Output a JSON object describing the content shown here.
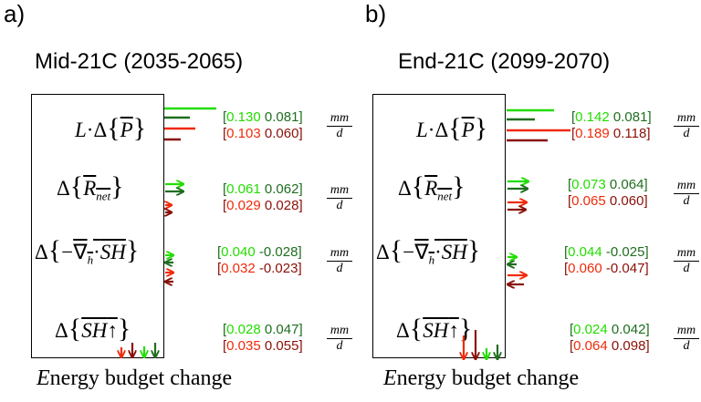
{
  "panels": [
    {
      "letter": "a)",
      "title": "Mid-21C (2035-2065)",
      "footer_E": "E",
      "footer_rest": "nergy budget change",
      "unit_num": "mm",
      "unit_den": "d",
      "terms": [
        {
          "top": [
            "0.130",
            "0.081"
          ],
          "bottom": [
            "0.103",
            "0.060"
          ]
        },
        {
          "top": [
            "0.061",
            "0.062"
          ],
          "bottom": [
            "0.029",
            "0.028"
          ]
        },
        {
          "top": [
            "0.040",
            "-0.028"
          ],
          "bottom": [
            "0.032",
            "-0.023"
          ]
        },
        {
          "top": [
            "0.028",
            "0.047"
          ],
          "bottom": [
            "0.035",
            "0.055"
          ]
        }
      ]
    },
    {
      "letter": "b)",
      "title": "End-21C (2099-2070)",
      "footer_E": "E",
      "footer_rest": "nergy budget change",
      "unit_num": "mm",
      "unit_den": "d",
      "terms": [
        {
          "top": [
            "0.142",
            "0.081"
          ],
          "bottom": [
            "0.189",
            "0.118"
          ]
        },
        {
          "top": [
            "0.073",
            "0.064"
          ],
          "bottom": [
            "0.065",
            "0.060"
          ]
        },
        {
          "top": [
            "0.044",
            "-0.025"
          ],
          "bottom": [
            "0.060",
            "-0.047"
          ]
        },
        {
          "top": [
            "0.024",
            "0.042"
          ],
          "bottom": [
            "0.064",
            "0.098"
          ]
        }
      ]
    }
  ],
  "colors": {
    "model1_green": "#22dd00",
    "model2_darkgreen": "#1f6e1f",
    "model1_red": "#f02a0a",
    "model2_darkred": "#8a1008"
  }
}
